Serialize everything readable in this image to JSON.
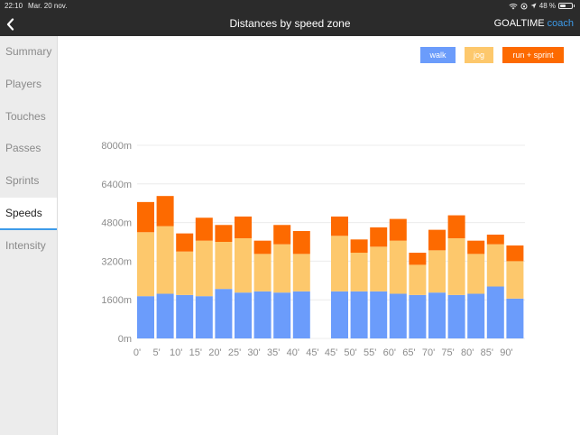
{
  "status_bar": {
    "time": "22:10",
    "date": "Mar. 20 nov.",
    "battery_text": "48 %",
    "battery_level": 0.48
  },
  "nav": {
    "title": "Distances by speed zone",
    "brand": "GOALTIME",
    "brand_sub": "coach"
  },
  "sidebar": {
    "items": [
      {
        "label": "Summary",
        "active": false
      },
      {
        "label": "Players",
        "active": false
      },
      {
        "label": "Touches",
        "active": false
      },
      {
        "label": "Passes",
        "active": false
      },
      {
        "label": "Sprints",
        "active": false
      },
      {
        "label": "Speeds",
        "active": true
      },
      {
        "label": "Intensity",
        "active": false
      }
    ]
  },
  "legend": {
    "walk": "walk",
    "jog": "jog",
    "run": "run + sprint"
  },
  "colors": {
    "walk": "#6b9cfb",
    "jog": "#fdc86c",
    "run": "#fd6a00",
    "accent": "#3d9be9",
    "navbar": "#2b2b2b",
    "grid": "#ececec",
    "axis_text": "#8c8c8c"
  },
  "chart_data": {
    "type": "bar",
    "stacked": true,
    "title": "Distances by speed zone",
    "ylim": [
      0,
      8000
    ],
    "y_ticks": [
      "0m",
      "1600m",
      "3200m",
      "4800m",
      "6400m",
      "8000m"
    ],
    "y_tick_values": [
      0,
      1600,
      3200,
      4800,
      6400,
      8000
    ],
    "x_tick_labels": [
      "0'",
      "5'",
      "10'",
      "15'",
      "20'",
      "25'",
      "30'",
      "35'",
      "40'",
      "45'",
      "45'",
      "50'",
      "55'",
      "60'",
      "65'",
      "70'",
      "75'",
      "80'",
      "85'",
      "90'"
    ],
    "halves": [
      {
        "bars": [
          [
            1750,
            2650,
            1250
          ],
          [
            1850,
            2800,
            1250
          ],
          [
            1800,
            1800,
            750
          ],
          [
            1750,
            2300,
            950
          ],
          [
            2050,
            1950,
            700
          ],
          [
            1900,
            2250,
            900
          ],
          [
            1950,
            1550,
            550
          ],
          [
            1900,
            2000,
            800
          ],
          [
            1950,
            1550,
            950
          ]
        ]
      },
      {
        "bars": [
          [
            1950,
            2300,
            800
          ],
          [
            1950,
            1600,
            550
          ],
          [
            1950,
            1850,
            800
          ],
          [
            1850,
            2200,
            900
          ],
          [
            1800,
            1250,
            500
          ],
          [
            1900,
            1750,
            850
          ],
          [
            1800,
            2350,
            950
          ],
          [
            1850,
            1650,
            550
          ],
          [
            2150,
            1750,
            400
          ],
          [
            1650,
            1550,
            650
          ]
        ]
      }
    ],
    "series": [
      "walk",
      "jog",
      "run + sprint"
    ]
  }
}
